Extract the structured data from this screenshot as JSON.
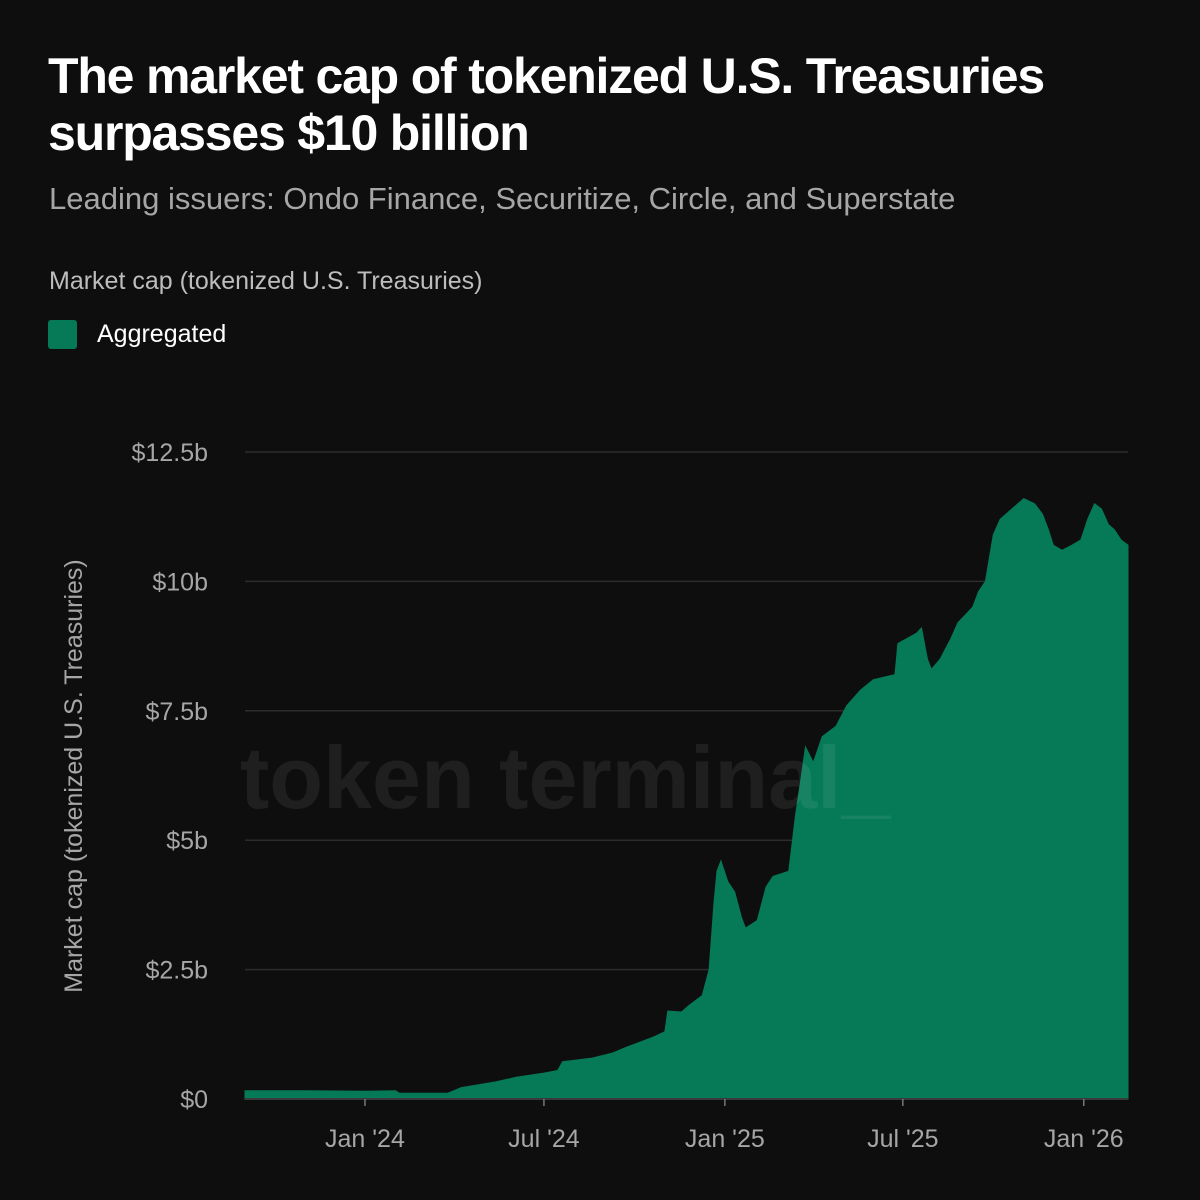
{
  "header": {
    "title": "The market cap of tokenized U.S. Treasuries surpasses $10 billion",
    "subtitle": "Leading issuers: Ondo Finance, Securitize, Circle, and Superstate",
    "chart_label": "Market cap (tokenized U.S. Treasuries)"
  },
  "watermark": "token terminal_",
  "colors": {
    "background": "#0e0e0e",
    "series": "#067a57",
    "grid": "#2c2c2c",
    "muted_text": "#a6a6a6"
  },
  "chart_data": {
    "type": "area",
    "title": "The market cap of tokenized U.S. Treasuries surpasses $10 billion",
    "subtitle": "Leading issuers: Ondo Finance, Securitize, Circle, and Superstate",
    "ylabel": "Market cap (tokenized U.S. Treasuries)",
    "xlabel": "",
    "ylim": [
      0,
      12.5
    ],
    "y_unit": "billions USD",
    "y_ticks": [
      {
        "value": 0,
        "label": "$0"
      },
      {
        "value": 2.5,
        "label": "$2.5b"
      },
      {
        "value": 5,
        "label": "$5b"
      },
      {
        "value": 7.5,
        "label": "$7.5b"
      },
      {
        "value": 10,
        "label": "$10b"
      },
      {
        "value": 12.5,
        "label": "$12.5b"
      }
    ],
    "xlim": [
      "2023-09-01",
      "2026-02-15"
    ],
    "x_ticks": [
      {
        "value": "2024-01-01",
        "label": "Jan '24"
      },
      {
        "value": "2024-07-01",
        "label": "Jul '24"
      },
      {
        "value": "2025-01-01",
        "label": "Jan '25"
      },
      {
        "value": "2025-07-01",
        "label": "Jul '25"
      },
      {
        "value": "2026-01-01",
        "label": "Jan '26"
      }
    ],
    "grid": true,
    "legend": "top-left",
    "series": [
      {
        "name": "Aggregated",
        "color": "#067a57",
        "points": [
          [
            "2023-09-01",
            0.16
          ],
          [
            "2023-11-01",
            0.16
          ],
          [
            "2024-01-01",
            0.15
          ],
          [
            "2024-02-01",
            0.16
          ],
          [
            "2024-02-05",
            0.11
          ],
          [
            "2024-03-25",
            0.11
          ],
          [
            "2024-04-08",
            0.22
          ],
          [
            "2024-05-13",
            0.33
          ],
          [
            "2024-06-03",
            0.42
          ],
          [
            "2024-07-01",
            0.5
          ],
          [
            "2024-07-15",
            0.55
          ],
          [
            "2024-07-20",
            0.72
          ],
          [
            "2024-08-19",
            0.79
          ],
          [
            "2024-09-09",
            0.89
          ],
          [
            "2024-09-23",
            1.0
          ],
          [
            "2024-10-21",
            1.2
          ],
          [
            "2024-11-01",
            1.3
          ],
          [
            "2024-11-04",
            1.7
          ],
          [
            "2024-11-18",
            1.68
          ],
          [
            "2024-11-25",
            1.8
          ],
          [
            "2024-12-09",
            2.0
          ],
          [
            "2024-12-16",
            2.5
          ],
          [
            "2024-12-21",
            3.8
          ],
          [
            "2024-12-24",
            4.4
          ],
          [
            "2024-12-28",
            4.6
          ],
          [
            "2025-01-04",
            4.2
          ],
          [
            "2025-01-11",
            4.0
          ],
          [
            "2025-01-18",
            3.5
          ],
          [
            "2025-01-22",
            3.3
          ],
          [
            "2025-02-03",
            3.45
          ],
          [
            "2025-02-12",
            4.1
          ],
          [
            "2025-02-19",
            4.3
          ],
          [
            "2025-03-07",
            4.4
          ],
          [
            "2025-03-14",
            5.5
          ],
          [
            "2025-03-18",
            6.0
          ],
          [
            "2025-03-24",
            6.8
          ],
          [
            "2025-04-01",
            6.5
          ],
          [
            "2025-04-10",
            7.0
          ],
          [
            "2025-04-24",
            7.2
          ],
          [
            "2025-05-05",
            7.6
          ],
          [
            "2025-05-19",
            7.9
          ],
          [
            "2025-06-01",
            8.1
          ],
          [
            "2025-06-23",
            8.2
          ],
          [
            "2025-06-26",
            8.8
          ],
          [
            "2025-07-15",
            9.0
          ],
          [
            "2025-07-20",
            9.1
          ],
          [
            "2025-07-26",
            8.5
          ],
          [
            "2025-07-30",
            8.3
          ],
          [
            "2025-08-08",
            8.5
          ],
          [
            "2025-08-19",
            8.9
          ],
          [
            "2025-08-26",
            9.2
          ],
          [
            "2025-09-10",
            9.5
          ],
          [
            "2025-09-16",
            9.8
          ],
          [
            "2025-09-23",
            10.0
          ],
          [
            "2025-10-01",
            10.9
          ],
          [
            "2025-10-08",
            11.2
          ],
          [
            "2025-10-20",
            11.4
          ],
          [
            "2025-11-01",
            11.6
          ],
          [
            "2025-11-12",
            11.5
          ],
          [
            "2025-11-20",
            11.3
          ],
          [
            "2025-11-26",
            11.0
          ],
          [
            "2025-12-01",
            10.7
          ],
          [
            "2025-12-10",
            10.6
          ],
          [
            "2025-12-20",
            10.7
          ],
          [
            "2025-12-29",
            10.8
          ],
          [
            "2026-01-05",
            11.2
          ],
          [
            "2026-01-12",
            11.5
          ],
          [
            "2026-01-19",
            11.4
          ],
          [
            "2026-01-26",
            11.1
          ],
          [
            "2026-02-01",
            11.0
          ],
          [
            "2026-02-08",
            10.8
          ],
          [
            "2026-02-15",
            10.7
          ]
        ]
      }
    ]
  }
}
